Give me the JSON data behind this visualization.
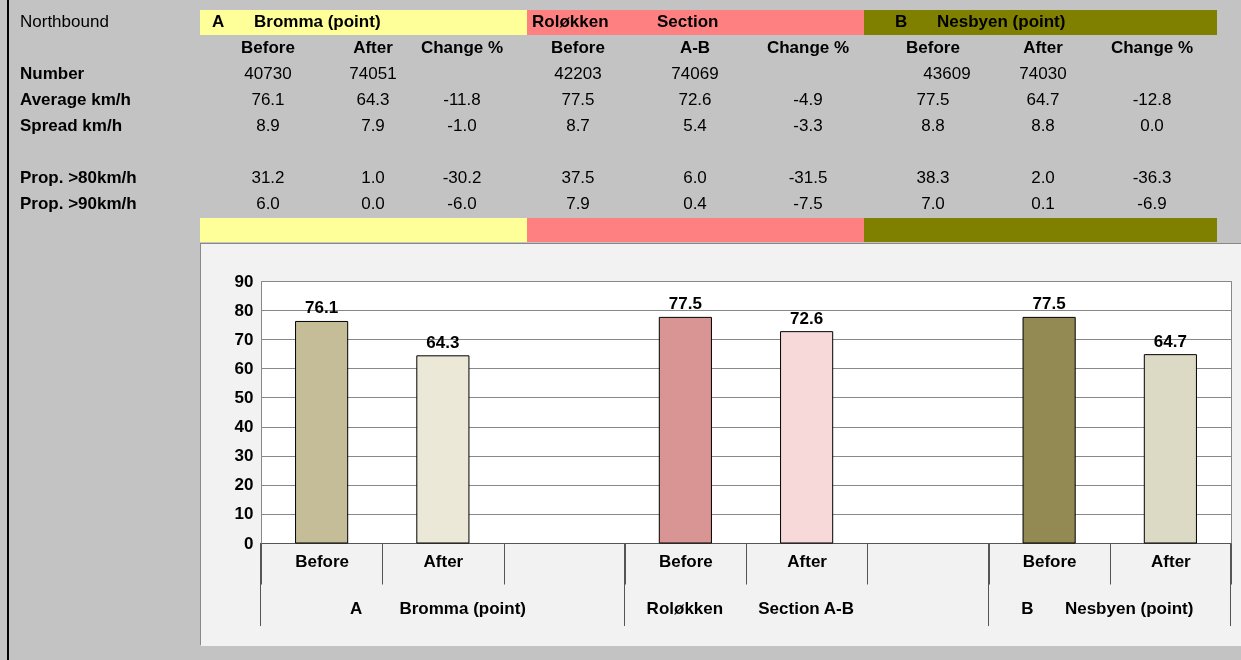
{
  "chart_data": [
    {
      "type": "other",
      "colors": [
        "#ffff99",
        "#ff8080",
        "#808000"
      ],
      "annotations": [
        "Northbound",
        "A",
        "Bromma (point)",
        "Roløkken",
        "Section",
        "B",
        "Nesbyen (point)",
        "Before",
        "After",
        "Change %",
        "Before",
        "A-B",
        "Change %",
        "Before",
        "After",
        "Change %",
        "Number",
        "40730",
        "74051",
        "42203",
        "74069",
        "43609",
        "74030",
        "Average km/h",
        "76.1",
        "64.3",
        "-11.8",
        "77.5",
        "72.6",
        "-4.9",
        "77.5",
        "64.7",
        "-12.8",
        "Spread km/h",
        "8.9",
        "7.9",
        "-1.0",
        "8.7",
        "5.4",
        "-3.3",
        "8.8",
        "8.8",
        "0.0",
        "Prop. >80km/h",
        "31.2",
        "1.0",
        "-30.2",
        "37.5",
        "6.0",
        "-31.5",
        "38.3",
        "2.0",
        "-36.3",
        "Prop. >90km/h",
        "6.0",
        "0.0",
        "-6.0",
        "7.9",
        "0.4",
        "-7.5",
        "7.0",
        "0.1",
        "-6.9"
      ]
    },
    {
      "type": "bar",
      "categories": [
        "Before",
        "After",
        null,
        "Before",
        "After",
        null,
        "Before",
        "After"
      ],
      "values": [
        76.1,
        64.3,
        null,
        77.5,
        72.6,
        null,
        77.5,
        64.7
      ],
      "colors": [
        "#c4bd97",
        "#ebe8d8",
        "#ffffff",
        "#d99594",
        "#f7d9d9",
        "#ffffff",
        "#938953",
        "#dcd9c4"
      ],
      "ylim": [
        0,
        90
      ],
      "yticks": [
        0,
        10,
        20,
        30,
        40,
        50,
        60,
        70,
        80,
        90
      ],
      "grid": "y",
      "data_labels": true,
      "annotations": [
        "A",
        "Bromma (point)",
        "Roløkken",
        "Section A-B",
        "B",
        "Nesbyen (point)"
      ]
    }
  ]
}
